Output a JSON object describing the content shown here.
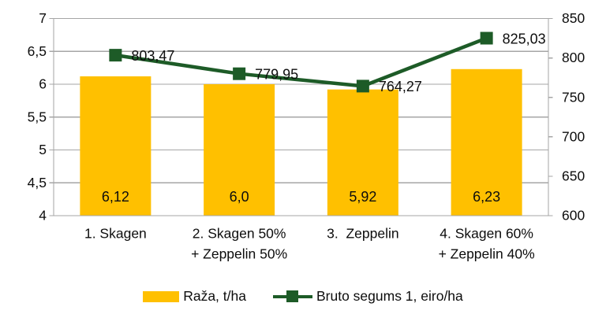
{
  "colors": {
    "bar": "#FFC000",
    "line": "#1D5B27",
    "grid": "#A6A6A6",
    "axis": "#A6A6A6",
    "text": "#0D0D0D",
    "background": "#FFFFFF"
  },
  "chart_data": {
    "type": "combo-bar-line",
    "categories": [
      [
        "1. Skagen"
      ],
      [
        "2. Skagen 50%",
        "+ Zeppelin 50%"
      ],
      [
        "3.  Zeppelin"
      ],
      [
        "4. Skagen 60%",
        "+ Zeppelin 40%"
      ]
    ],
    "series": [
      {
        "name": "Raža, t/ha",
        "chart_type": "bar",
        "axis": "left",
        "values": [
          6.12,
          6.0,
          5.92,
          6.23
        ],
        "value_labels": [
          "6,12",
          "6,0",
          "5,92",
          "6,23"
        ],
        "color": "#FFC000"
      },
      {
        "name": "Bruto segums 1, eiro/ha",
        "chart_type": "line",
        "axis": "right",
        "values": [
          803.47,
          779.95,
          764.27,
          825.03
        ],
        "value_labels": [
          "803,47",
          "779,95",
          "764,27",
          "825,03"
        ],
        "color": "#1D5B27"
      }
    ],
    "left_axis": {
      "min": 4,
      "max": 7,
      "step": 0.5,
      "tick_labels": [
        "4",
        "4,5",
        "5",
        "5,5",
        "6",
        "6,5",
        "7"
      ]
    },
    "right_axis": {
      "min": 600,
      "max": 850,
      "step": 50,
      "tick_labels": [
        "600",
        "650",
        "700",
        "750",
        "800",
        "850"
      ]
    },
    "grid": true,
    "legend_position": "bottom"
  }
}
